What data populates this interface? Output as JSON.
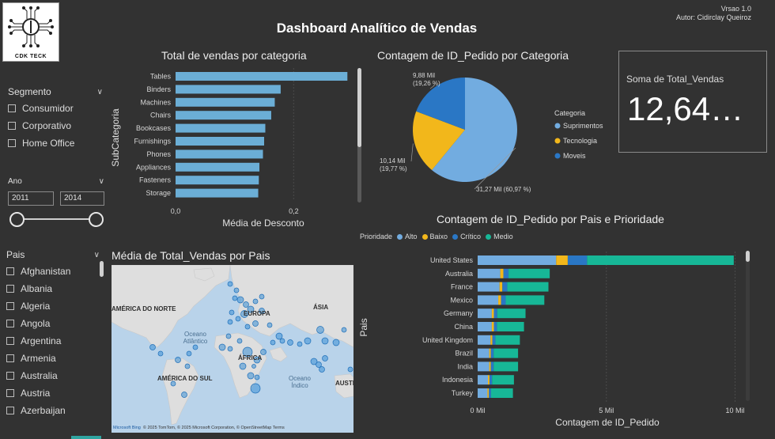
{
  "header": {
    "title": "Dashboard Analítico de Vendas",
    "version": "Vrsao 1.0",
    "author": "Autor: Cidirclay Queiroz",
    "logo_text": "CDK TECK"
  },
  "slicers": {
    "segmento": {
      "title": "Segmento",
      "items": [
        "Consumidor",
        "Corporativo",
        "Home Office"
      ]
    },
    "ano": {
      "title": "Ano",
      "from": "2011",
      "to": "2014"
    },
    "pais": {
      "title": "Pais",
      "items": [
        "Afghanistan",
        "Albania",
        "Algeria",
        "Angola",
        "Argentina",
        "Armenia",
        "Australia",
        "Austria",
        "Azerbaijan"
      ]
    }
  },
  "card": {
    "title": "Soma de Total_Vendas",
    "value": "12,64…"
  },
  "map": {
    "title": "Média de Total_Vendas por Pais",
    "labels": {
      "north_america": "AMÉRICA DO NORTE",
      "europe": "EUROPA",
      "asia": "ÁSIA",
      "africa": "ÁFRICA",
      "south_america": "AMÉRICA DO SUL",
      "atlantic_1": "Oceano",
      "atlantic_2": "Atlântico",
      "indian_1": "Oceano",
      "indian_2": "Índico",
      "australia_partial": "AUSTR"
    },
    "attribution": "© 2025 TomTom, © 2025 Microsoft Corporation, © OpenStreetMap  Terms",
    "brand": "Microsoft Bing"
  },
  "colors": {
    "background": "#323232",
    "bar_blue": "#6baed6",
    "alto": "#72ace0",
    "baixo": "#f2b71b",
    "critico": "#2a77c5",
    "medio": "#17b797",
    "map_water": "#b9d3ea",
    "map_land": "#dcdcdc"
  },
  "chart_data": [
    {
      "id": "subcat",
      "type": "bar",
      "orientation": "horizontal",
      "title": "Total de vendas por categoria",
      "xlabel": "Média de Desconto",
      "ylabel": "SubCategoria",
      "categories": [
        "Tables",
        "Binders",
        "Machines",
        "Chairs",
        "Bookcases",
        "Furnishings",
        "Phones",
        "Appliances",
        "Fasteners",
        "Storage"
      ],
      "values": [
        0.291,
        0.178,
        0.168,
        0.162,
        0.152,
        0.15,
        0.148,
        0.142,
        0.141,
        0.14
      ],
      "xlim": [
        0,
        0.3
      ],
      "xticks": [
        "0,0",
        "0,2"
      ]
    },
    {
      "id": "pie",
      "type": "pie",
      "title": "Contagem de ID_Pedido por Categoria",
      "legend_title": "Categoria",
      "legend_position": "right",
      "slices": [
        {
          "name": "Suprimentos",
          "value": 31.27,
          "label_1": "31,27 Mil (60,97 %)",
          "label_2": ""
        },
        {
          "name": "Tecnologia",
          "value": 10.14,
          "label_1": "10,14 Mil",
          "label_2": "(19,77 %)"
        },
        {
          "name": "Moveis",
          "value": 9.88,
          "label_1": "9,88 Mil",
          "label_2": "(19,26 %)"
        }
      ]
    },
    {
      "id": "pais",
      "type": "bar",
      "orientation": "horizontal",
      "stacked": true,
      "title": "Contagem de ID_Pedido por Pais e Prioridade",
      "legend_title": "Prioridade",
      "legend_position": "top-left",
      "xlabel": "Contagem de ID_Pedido",
      "ylabel": "Pais",
      "xlim": [
        0,
        10.2
      ],
      "xticks": [
        {
          "v": 0,
          "label": "0 Mil"
        },
        {
          "v": 5,
          "label": "5 Mil"
        },
        {
          "v": 10,
          "label": "10 Mil"
        }
      ],
      "categories": [
        "United States",
        "Australia",
        "France",
        "Mexico",
        "Germany",
        "China",
        "United Kingdom",
        "Brazil",
        "India",
        "Indonesia",
        "Turkey"
      ],
      "series": [
        {
          "name": "Alto",
          "values": [
            3.05,
            0.88,
            0.85,
            0.8,
            0.55,
            0.55,
            0.5,
            0.45,
            0.45,
            0.4,
            0.38
          ]
        },
        {
          "name": "Baixo",
          "values": [
            0.45,
            0.12,
            0.11,
            0.11,
            0.08,
            0.08,
            0.07,
            0.06,
            0.06,
            0.06,
            0.05
          ]
        },
        {
          "name": "Crítico",
          "values": [
            0.75,
            0.2,
            0.19,
            0.18,
            0.13,
            0.12,
            0.12,
            0.11,
            0.11,
            0.1,
            0.09
          ]
        },
        {
          "name": "Medio",
          "values": [
            5.7,
            1.6,
            1.6,
            1.5,
            1.1,
            1.05,
            0.95,
            0.95,
            0.95,
            0.85,
            0.85
          ]
        }
      ]
    }
  ]
}
